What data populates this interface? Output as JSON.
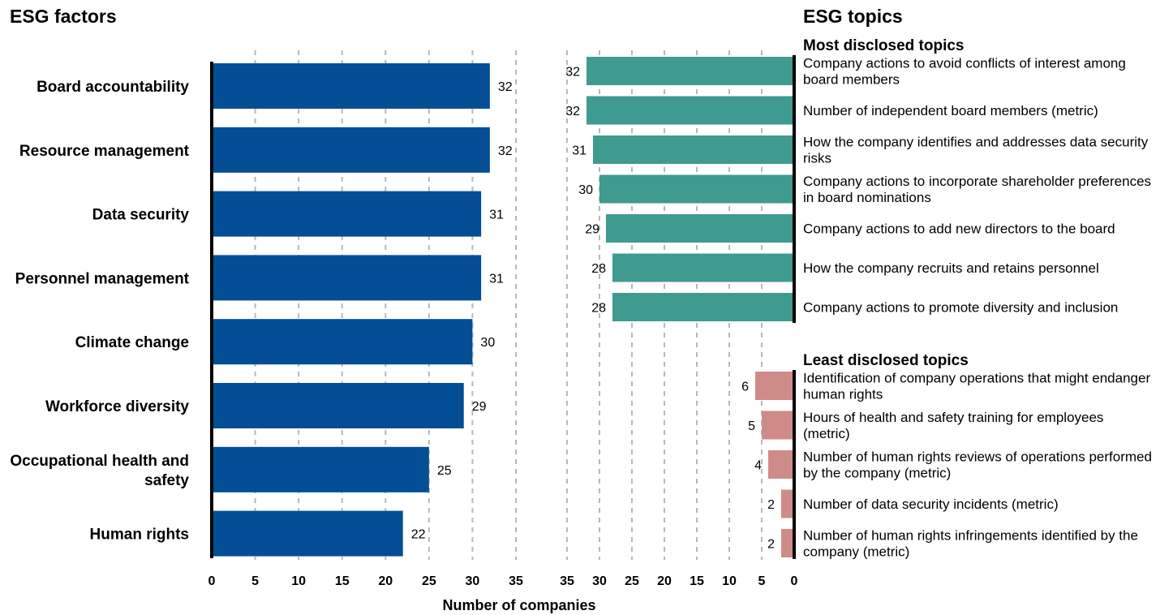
{
  "chart_data": [
    {
      "type": "bar",
      "orientation": "horizontal",
      "title": "ESG factors",
      "xlabel": "Number of companies",
      "xlim": [
        0,
        35
      ],
      "xticks": [
        0,
        5,
        10,
        15,
        20,
        25,
        30,
        35
      ],
      "grid": true,
      "colors": {
        "bar": "#034e94"
      },
      "categories": [
        "Board accountability",
        "Resource management",
        "Data security",
        "Personnel management",
        "Climate change",
        "Workforce diversity",
        "Occupational health and safety",
        "Human rights"
      ],
      "label_lines": [
        [
          "Board accountability"
        ],
        [
          "Resource management"
        ],
        [
          "Data security"
        ],
        [
          "Personnel management"
        ],
        [
          "Climate change"
        ],
        [
          "Workforce diversity"
        ],
        [
          "Occupational health and",
          "safety"
        ],
        [
          "Human rights"
        ]
      ],
      "values": [
        32,
        32,
        31,
        31,
        30,
        29,
        25,
        22
      ]
    },
    {
      "type": "bar",
      "orientation": "horizontal",
      "direction": "reversed",
      "title": "ESG topics",
      "xlim": [
        0,
        35
      ],
      "xticks": [
        35,
        30,
        25,
        20,
        15,
        10,
        5,
        0
      ],
      "grid": true,
      "groups": [
        {
          "name": "Most disclosed topics",
          "color": "#3f9a8f",
          "categories": [
            "Company actions to avoid conflicts of interest among board members",
            "Number of independent board members (metric)",
            "How the company identifies and addresses data security risks",
            "Company actions to incorporate shareholder preferences in board nominations",
            "Company actions to add new directors to the board",
            "How the company recruits and retains personnel",
            "Company actions to promote diversity and inclusion"
          ],
          "label_lines": [
            [
              "Company actions to avoid conflicts of interest among",
              "board members"
            ],
            [
              "Number of independent board members (metric)"
            ],
            [
              "How the company identifies and addresses data security",
              "risks"
            ],
            [
              "Company actions to incorporate shareholder preferences",
              "in board nominations"
            ],
            [
              "Company actions to add new directors to the board"
            ],
            [
              "How the company recruits and retains personnel"
            ],
            [
              "Company actions to promote diversity and inclusion"
            ]
          ],
          "values": [
            32,
            32,
            31,
            30,
            29,
            28,
            28
          ]
        },
        {
          "name": "Least disclosed topics",
          "color": "#cf8b87",
          "categories": [
            "Identification of company operations that might endanger human rights",
            "Hours of health and safety training for employees (metric)",
            "Number of human rights reviews of operations performed by the company (metric)",
            "Number of data security incidents (metric)",
            "Number of human rights infringements identified by the company (metric)"
          ],
          "label_lines": [
            [
              "Identification of company operations that might endanger",
              "human rights"
            ],
            [
              "Hours of health and safety training for employees",
              "(metric)"
            ],
            [
              "Number of human rights reviews of operations performed",
              "by the company (metric)"
            ],
            [
              "Number of data security incidents (metric)"
            ],
            [
              "Number of human rights infringements identified by the",
              "company (metric)"
            ]
          ],
          "values": [
            6,
            5,
            4,
            2,
            2
          ]
        }
      ]
    }
  ]
}
